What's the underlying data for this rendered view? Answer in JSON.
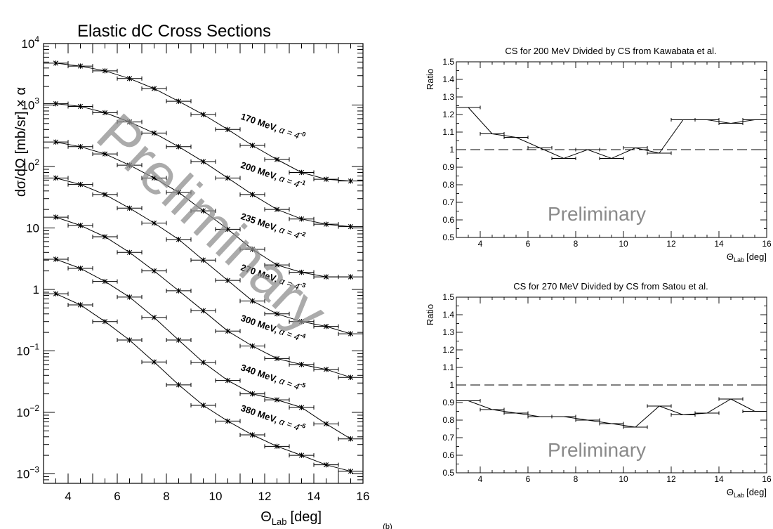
{
  "chart_data": [
    {
      "type": "scatter",
      "title": "Elastic dC Cross Sections",
      "xlabel": "Θ",
      "xlabel_sub": "Lab",
      "xlabel_unit": "[deg]",
      "ylabel": "dσ/dΩ [mb/sr] × α",
      "xlim": [
        3,
        16
      ],
      "ylim": [
        0.0007,
        10000
      ],
      "yscale": "log",
      "x_ticks": [
        4,
        6,
        8,
        10,
        12,
        14,
        16
      ],
      "y_ticks": [
        {
          "value": 0.001,
          "base": "10",
          "exp": "−3"
        },
        {
          "value": 0.01,
          "base": "10",
          "exp": "−2"
        },
        {
          "value": 0.1,
          "base": "10",
          "exp": "−1"
        },
        {
          "value": 1,
          "base": "1",
          "exp": ""
        },
        {
          "value": 10,
          "base": "10",
          "exp": ""
        },
        {
          "value": 100,
          "base": "10",
          "exp": "2"
        },
        {
          "value": 1000,
          "base": "10",
          "exp": "3"
        },
        {
          "value": 10000,
          "base": "10",
          "exp": "4"
        }
      ],
      "watermark": "Preliminary",
      "series": [
        {
          "energy": "170 MeV,",
          "alpha_base": "α = 4",
          "alpha_exp": "-0",
          "x": [
            3.5,
            4.5,
            5.5,
            6.5,
            7.5,
            8.5,
            9.5,
            10.5,
            11.5,
            12.5,
            13.5,
            14.5,
            15.5
          ],
          "y": [
            4800,
            4300,
            3600,
            2700,
            1850,
            1150,
            700,
            400,
            220,
            130,
            80,
            62,
            58
          ]
        },
        {
          "energy": "200 MeV,",
          "alpha_base": "α = 4",
          "alpha_exp": "-1",
          "x": [
            3.5,
            4.5,
            5.5,
            6.5,
            7.5,
            8.5,
            9.5,
            10.5,
            11.5,
            12.5,
            13.5,
            14.5,
            15.5
          ],
          "y": [
            1050,
            950,
            750,
            530,
            350,
            210,
            120,
            65,
            35,
            20,
            14,
            11.5,
            10.5
          ]
        },
        {
          "energy": "235 MeV,",
          "alpha_base": "α = 4",
          "alpha_exp": "-2",
          "x": [
            3.5,
            4.5,
            5.5,
            6.5,
            7.5,
            8.5,
            9.5,
            10.5,
            11.5,
            12.5,
            13.5,
            14.5,
            15.5
          ],
          "y": [
            250,
            210,
            160,
            105,
            65,
            38,
            19,
            9.5,
            4.5,
            2.5,
            1.9,
            1.6,
            1.6
          ]
        },
        {
          "energy": "270 MeV,",
          "alpha_base": "α = 4",
          "alpha_exp": "-3",
          "x": [
            3.5,
            4.5,
            5.5,
            6.5,
            7.5,
            8.5,
            9.5,
            10.5,
            11.5,
            12.5,
            13.5,
            14.5,
            15.5
          ],
          "y": [
            65,
            51,
            35,
            21,
            12,
            6.5,
            3.0,
            1.4,
            0.65,
            0.4,
            0.3,
            0.25,
            0.19
          ]
        },
        {
          "energy": "300 MeV,",
          "alpha_base": "α = 4",
          "alpha_exp": "-4",
          "x": [
            3.5,
            4.5,
            5.5,
            6.5,
            7.5,
            8.5,
            9.5,
            10.5,
            11.5,
            12.5,
            13.5,
            14.5,
            15.5
          ],
          "y": [
            15,
            11,
            7.2,
            4.0,
            2.0,
            0.95,
            0.45,
            0.21,
            0.12,
            0.075,
            0.06,
            0.05,
            0.037
          ]
        },
        {
          "energy": "340 MeV,",
          "alpha_base": "α = 4",
          "alpha_exp": "-5",
          "x": [
            3.5,
            4.5,
            5.5,
            6.5,
            7.5,
            8.5,
            9.5,
            10.5,
            11.5,
            12.5,
            13.5,
            14.5,
            15.5
          ],
          "y": [
            3.1,
            2.2,
            1.35,
            0.75,
            0.35,
            0.15,
            0.065,
            0.033,
            0.02,
            0.016,
            0.012,
            0.0065,
            0.0037
          ]
        },
        {
          "energy": "380 MeV,",
          "alpha_base": "α = 4",
          "alpha_exp": "-6",
          "x": [
            3.5,
            4.5,
            5.5,
            6.5,
            7.5,
            8.5,
            9.5,
            10.5,
            11.5,
            12.5,
            13.5,
            14.5,
            15.5
          ],
          "y": [
            0.85,
            0.56,
            0.3,
            0.15,
            0.066,
            0.028,
            0.013,
            0.0072,
            0.0043,
            0.0028,
            0.002,
            0.0014,
            0.0011
          ]
        }
      ]
    },
    {
      "type": "line",
      "title": "CS for 200 MeV Divided by CS from Kawabata et al.",
      "xlabel": "Θ",
      "xlabel_sub": "Lab",
      "xlabel_unit": "[deg]",
      "ylabel": "Ratio",
      "xlim": [
        3,
        16
      ],
      "ylim": [
        0.5,
        1.5
      ],
      "x_ticks": [
        "4",
        "6",
        "8",
        "10",
        "12",
        "14",
        "16"
      ],
      "y_ticks": [
        "0.5",
        "0.6",
        "0.7",
        "0.8",
        "0.9",
        "1",
        "1.1",
        "1.2",
        "1.3",
        "1.4",
        "1.5"
      ],
      "reference_line": 1,
      "watermark": "Preliminary",
      "x": [
        3.5,
        4.5,
        5.5,
        6.5,
        7.5,
        8.5,
        9.5,
        10.5,
        11.5,
        12.5,
        13.5,
        14.5,
        15.5
      ],
      "y": [
        1.24,
        1.09,
        1.07,
        1.01,
        0.95,
        1.0,
        0.95,
        1.01,
        0.98,
        1.17,
        1.17,
        1.15,
        1.17
      ]
    },
    {
      "type": "line",
      "title": "CS for 270 MeV Divided by CS from Satou et al.",
      "xlabel": "Θ",
      "xlabel_sub": "Lab",
      "xlabel_unit": "[deg]",
      "ylabel": "Ratio",
      "xlim": [
        3,
        16
      ],
      "ylim": [
        0.5,
        1.5
      ],
      "x_ticks": [
        "4",
        "6",
        "8",
        "10",
        "12",
        "14",
        "16"
      ],
      "y_ticks": [
        "0.5",
        "0.6",
        "0.7",
        "0.8",
        "0.9",
        "1",
        "1.1",
        "1.2",
        "1.3",
        "1.4",
        "1.5"
      ],
      "reference_line": 1,
      "watermark": "Preliminary",
      "x": [
        3.5,
        4.5,
        5.5,
        6.5,
        7.5,
        8.5,
        9.5,
        10.5,
        11.5,
        12.5,
        13.5,
        14.5,
        15.5
      ],
      "y": [
        0.91,
        0.86,
        0.84,
        0.82,
        0.82,
        0.8,
        0.78,
        0.76,
        0.88,
        0.83,
        0.84,
        0.92,
        0.85
      ]
    }
  ],
  "caption_fragment": "(b)"
}
